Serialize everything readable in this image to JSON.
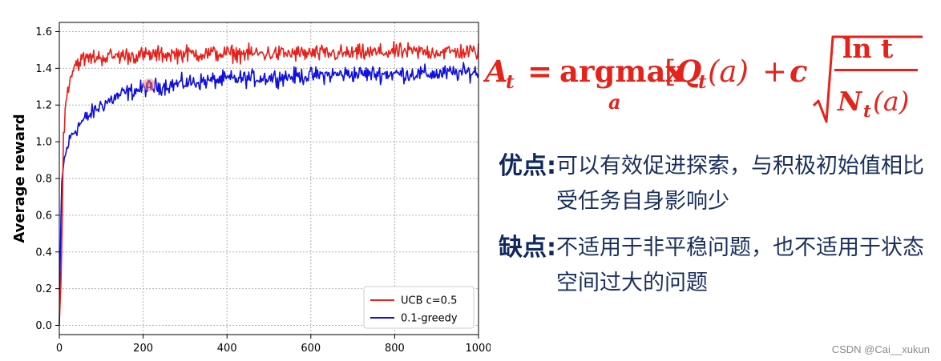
{
  "chart_data": {
    "type": "line",
    "ylabel": "Average reward",
    "xlim": [
      0,
      1000
    ],
    "ylim": [
      -0.05,
      1.65
    ],
    "xticks": [
      0,
      200,
      400,
      600,
      800,
      1000
    ],
    "yticks": [
      "0.0",
      "0.2",
      "0.4",
      "0.6",
      "0.8",
      "1.0",
      "1.2",
      "1.4",
      "1.6"
    ],
    "ytick_values": [
      0.0,
      0.2,
      0.4,
      0.6,
      0.8,
      1.0,
      1.2,
      1.4,
      1.6
    ],
    "grid": true,
    "legend_position": "bottom-right",
    "series": [
      {
        "name": "UCB c=0.5",
        "color": "#e8201a",
        "x": [
          0,
          5,
          10,
          20,
          30,
          40,
          60,
          80,
          100,
          150,
          200,
          300,
          400,
          500,
          600,
          700,
          800,
          900,
          1000
        ],
        "values": [
          0.0,
          0.3,
          1.05,
          1.3,
          1.38,
          1.43,
          1.45,
          1.46,
          1.46,
          1.47,
          1.47,
          1.48,
          1.48,
          1.48,
          1.48,
          1.48,
          1.49,
          1.49,
          1.49
        ]
      },
      {
        "name": "0.1-greedy",
        "color": "#1010e0",
        "x": [
          0,
          5,
          10,
          20,
          30,
          50,
          80,
          100,
          150,
          200,
          300,
          400,
          500,
          600,
          700,
          800,
          900,
          1000
        ],
        "values": [
          0.0,
          0.75,
          0.88,
          0.98,
          1.04,
          1.1,
          1.16,
          1.2,
          1.26,
          1.29,
          1.32,
          1.34,
          1.35,
          1.36,
          1.37,
          1.37,
          1.37,
          1.38
        ]
      }
    ]
  },
  "formula": {
    "lhs_var": "A",
    "lhs_sub": "t",
    "equals": "=",
    "op": "argmax",
    "op_sub": "a",
    "q_var": "Q",
    "q_sub": "t",
    "q_arg": "(a)",
    "plus": "+",
    "coef": "c",
    "num": "ln t",
    "den_var": "N",
    "den_sub": "t",
    "den_arg": "(a)",
    "color": "#e5231b"
  },
  "notes": {
    "pros_title": "优点:",
    "pros_text": "可以有效促进探索，与积极初始值相比受任务自身影响少",
    "cons_title": "缺点:",
    "cons_text": "不适用于非平稳问题，也不适用于状态空间过大的问题"
  },
  "watermark": "CSDN @Cai__xukun"
}
